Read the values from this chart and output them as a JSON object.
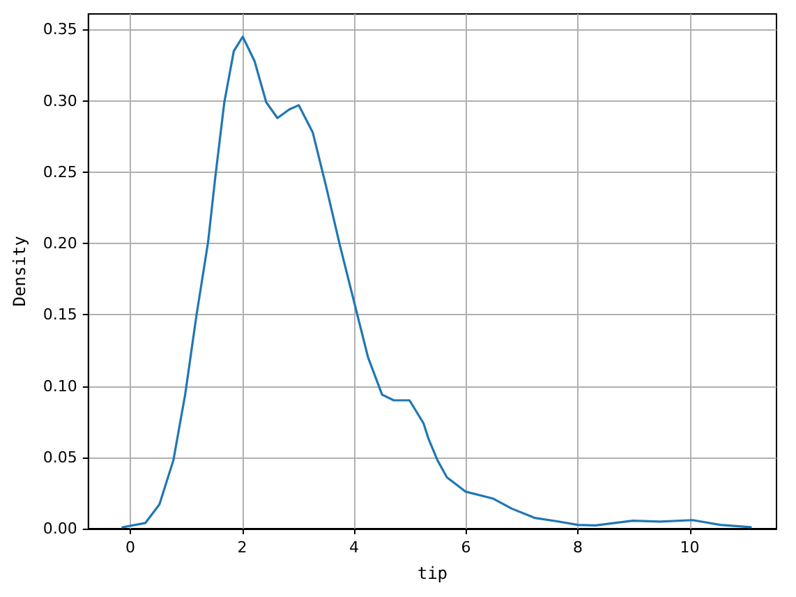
{
  "chart_data": {
    "type": "line",
    "xlabel": "tip",
    "ylabel": "Density",
    "series": [
      {
        "color": "#1f77b4",
        "x": [
          -0.14,
          0.27,
          0.52,
          0.77,
          0.98,
          1.18,
          1.39,
          1.52,
          1.68,
          1.85,
          2.01,
          2.22,
          2.43,
          2.63,
          2.84,
          3.01,
          3.26,
          3.5,
          3.75,
          4.0,
          4.25,
          4.5,
          4.71,
          4.99,
          5.24,
          5.33,
          5.49,
          5.66,
          5.99,
          6.49,
          6.82,
          7.23,
          7.65,
          8.0,
          8.31,
          8.98,
          9.47,
          10.05,
          10.55,
          11.09
        ],
        "values": [
          0.001,
          0.004,
          0.017,
          0.048,
          0.094,
          0.149,
          0.201,
          0.247,
          0.299,
          0.335,
          0.345,
          0.328,
          0.299,
          0.288,
          0.294,
          0.297,
          0.278,
          0.24,
          0.198,
          0.159,
          0.12,
          0.094,
          0.09,
          0.09,
          0.074,
          0.063,
          0.048,
          0.036,
          0.026,
          0.021,
          0.014,
          0.0075,
          0.005,
          0.0026,
          0.0023,
          0.0056,
          0.005,
          0.006,
          0.0026,
          0.001
        ]
      }
    ],
    "xlim": [
      -0.75,
      11.55
    ],
    "ylim": [
      0,
      0.361
    ],
    "xticks": [
      0,
      2,
      4,
      6,
      8,
      10
    ],
    "yticks": [
      {
        "value": 0,
        "label": "0.00"
      },
      {
        "value": 0.05,
        "label": "0.05"
      },
      {
        "value": 0.1,
        "label": "0.10"
      },
      {
        "value": 0.15,
        "label": "0.15"
      },
      {
        "value": 0.2,
        "label": "0.20"
      },
      {
        "value": 0.25,
        "label": "0.25"
      },
      {
        "value": 0.3,
        "label": "0.30"
      },
      {
        "value": 0.35,
        "label": "0.35"
      }
    ],
    "grid": true,
    "marker": "none",
    "line_style": "solid"
  }
}
